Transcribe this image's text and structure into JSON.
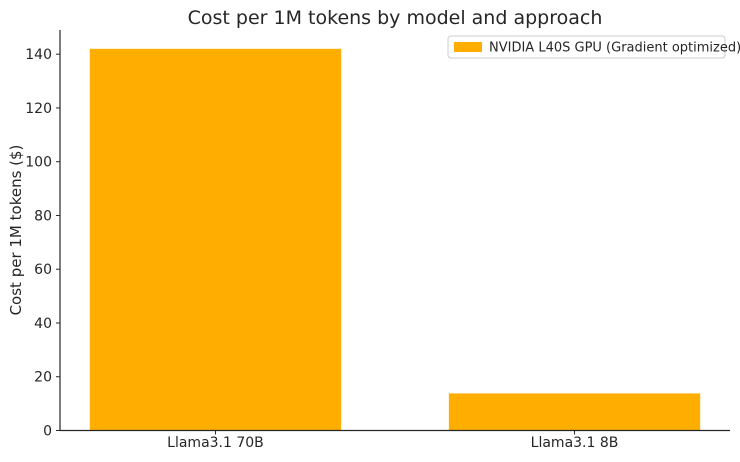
{
  "chart_data": {
    "type": "bar",
    "title": "Cost per 1M tokens by model and approach",
    "xlabel": "",
    "ylabel": "Cost per 1M tokens ($)",
    "categories": [
      "Llama3.1 70B",
      "Llama3.1 8B"
    ],
    "series": [
      {
        "name": "NVIDIA L40S GPU (Gradient optimized)",
        "values": [
          142,
          13.8
        ],
        "color": "#ffae00"
      }
    ],
    "ylim": [
      0,
      149
    ],
    "yticks": [
      0,
      20,
      40,
      60,
      80,
      100,
      120,
      140
    ],
    "grid": false,
    "legend": "top-right"
  }
}
